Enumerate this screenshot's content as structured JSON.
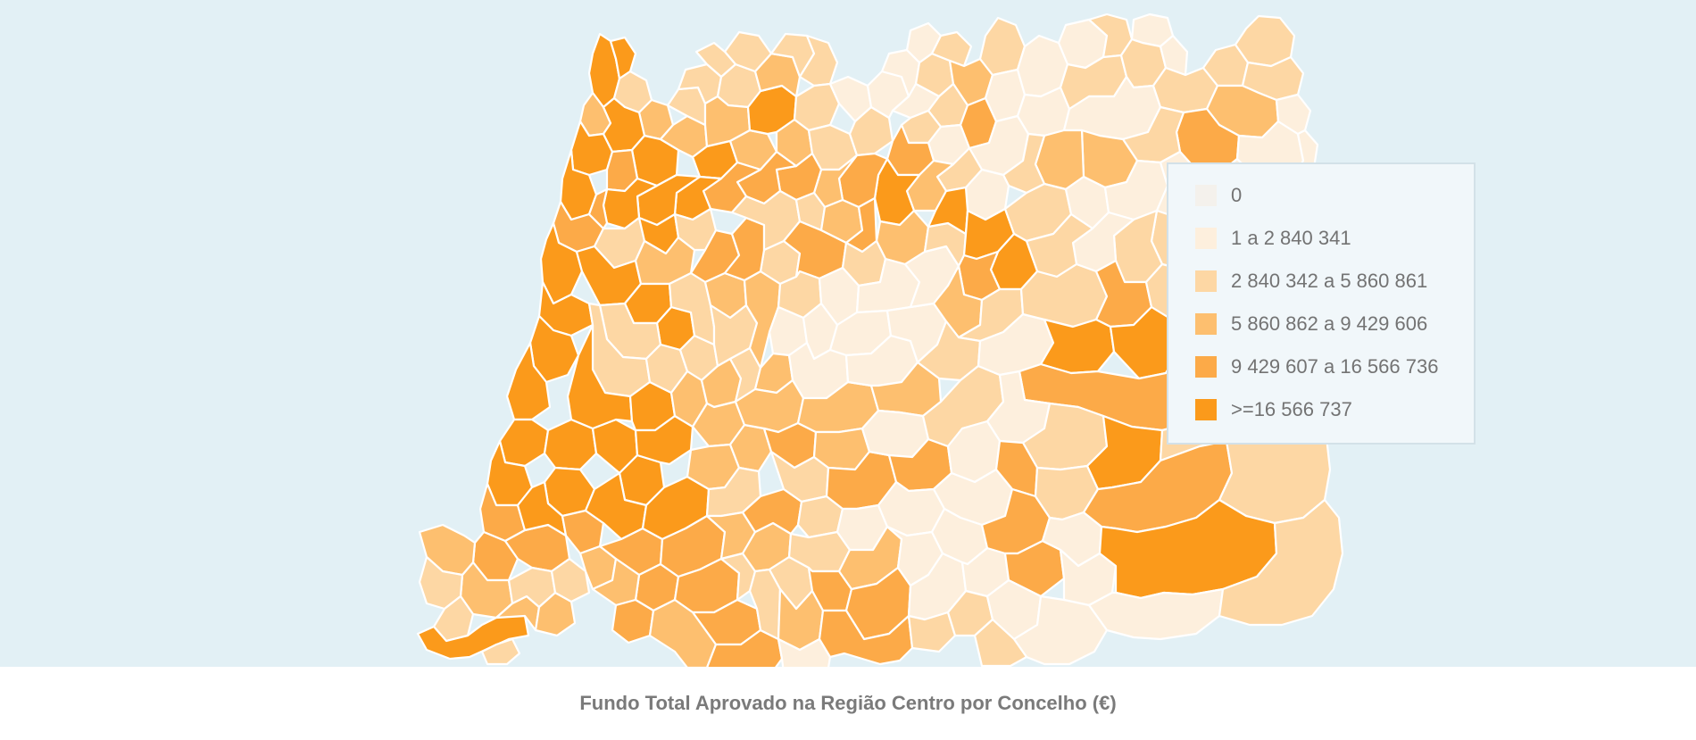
{
  "chart_data": {
    "type": "choropleth",
    "title": "Fundo Total Aprovado na Região Centro por Concelho (€)",
    "legend_position": "right",
    "classes": [
      {
        "label": "0",
        "color": "#f4f1ec"
      },
      {
        "label": "1 a 2 840 341",
        "color": "#fdefdd"
      },
      {
        "label": "2 840 342 a 5 860 861",
        "color": "#fdd7a4"
      },
      {
        "label": "5 860 862 a 9 429 606",
        "color": "#fdbf6f"
      },
      {
        "label": "9 429 607 a 16 566 736",
        "color": "#fcaa48"
      },
      {
        "label": ">=16 566 737",
        "color": "#fb9a1b"
      }
    ]
  }
}
